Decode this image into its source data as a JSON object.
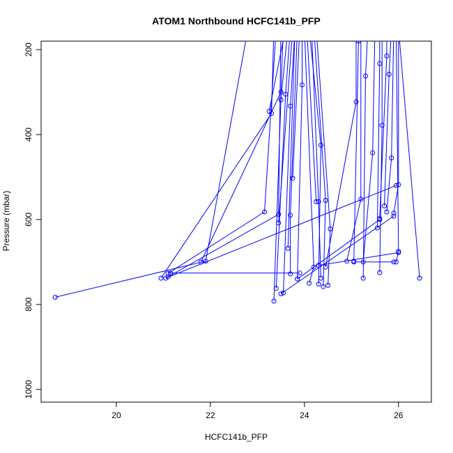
{
  "chart_data": {
    "type": "line",
    "title": "ATOM1 Northbound HCFC141b_PFP",
    "xlabel": "HCFC141b_PFP",
    "ylabel": "Pressure (mbar)",
    "xlim": [
      18.4,
      26.7
    ],
    "ylim": [
      1030,
      180
    ],
    "y_reversed": true,
    "x_ticks": [
      20,
      22,
      24,
      26
    ],
    "y_ticks": [
      200,
      400,
      600,
      800,
      1000
    ],
    "grid": false,
    "legend": "none",
    "color": "#0000ff",
    "series": [
      {
        "points": [
          [
            18.7,
            783
          ],
          [
            21.9,
            698
          ],
          [
            22.8,
            150
          ]
        ]
      },
      {
        "points": [
          [
            20.95,
            738
          ],
          [
            23.3,
            350
          ],
          [
            23.35,
            150
          ]
        ]
      },
      {
        "points": [
          [
            21.1,
            727
          ],
          [
            23.15,
            582
          ],
          [
            23.4,
            150
          ]
        ]
      },
      {
        "points": [
          [
            21.1,
            735
          ],
          [
            23.45,
            588
          ],
          [
            23.5,
            150
          ]
        ]
      },
      {
        "points": [
          [
            21.8,
            700
          ],
          [
            23.5,
            300
          ],
          [
            23.55,
            150
          ]
        ]
      },
      {
        "points": [
          [
            23.25,
            345
          ],
          [
            23.6,
            150
          ]
        ]
      },
      {
        "points": [
          [
            23.35,
            792
          ],
          [
            23.5,
            318
          ],
          [
            23.65,
            150
          ]
        ]
      },
      {
        "points": [
          [
            23.4,
            762
          ],
          [
            23.6,
            305
          ],
          [
            23.7,
            150
          ]
        ]
      },
      {
        "points": [
          [
            23.45,
            608
          ],
          [
            23.75,
            150
          ]
        ]
      },
      {
        "points": [
          [
            23.55,
            773
          ],
          [
            23.7,
            333
          ],
          [
            23.8,
            150
          ]
        ]
      },
      {
        "points": [
          [
            23.65,
            668
          ],
          [
            23.8,
            150
          ]
        ]
      },
      {
        "points": [
          [
            23.7,
            728
          ],
          [
            23.7,
            590
          ],
          [
            23.85,
            150
          ]
        ]
      },
      {
        "points": [
          [
            23.75,
            503
          ],
          [
            23.9,
            150
          ]
        ]
      },
      {
        "points": [
          [
            23.85,
            740
          ],
          [
            23.95,
            283
          ],
          [
            23.95,
            150
          ]
        ]
      },
      {
        "points": [
          [
            24.1,
            750
          ],
          [
            24.2,
            712
          ],
          [
            24.0,
            150
          ]
        ]
      },
      {
        "points": [
          [
            24.25,
            558
          ],
          [
            24.05,
            150
          ]
        ]
      },
      {
        "points": [
          [
            24.3,
            752
          ],
          [
            24.35,
            425
          ],
          [
            24.1,
            150
          ]
        ]
      },
      {
        "points": [
          [
            24.35,
            738
          ],
          [
            24.3,
            558
          ],
          [
            24.15,
            150
          ]
        ]
      },
      {
        "points": [
          [
            24.4,
            758
          ],
          [
            24.45,
            555
          ],
          [
            24.2,
            150
          ]
        ]
      },
      {
        "points": [
          [
            24.5,
            755
          ],
          [
            24.55,
            622
          ],
          [
            24.25,
            150
          ]
        ]
      },
      {
        "points": [
          [
            24.45,
            712
          ],
          [
            25.1,
            323
          ],
          [
            25.1,
            150
          ]
        ]
      },
      {
        "points": [
          [
            24.9,
            698
          ],
          [
            25.2,
            552
          ],
          [
            25.2,
            150
          ]
        ]
      },
      {
        "points": [
          [
            25.05,
            698
          ],
          [
            25.15,
            180
          ],
          [
            25.25,
            150
          ]
        ]
      },
      {
        "points": [
          [
            25.25,
            738
          ],
          [
            25.3,
            262
          ],
          [
            25.35,
            150
          ]
        ]
      },
      {
        "points": [
          [
            25.25,
            700
          ],
          [
            25.45,
            443
          ],
          [
            25.5,
            150
          ]
        ]
      },
      {
        "points": [
          [
            25.55,
            620
          ],
          [
            25.6,
            233
          ],
          [
            25.6,
            150
          ]
        ]
      },
      {
        "points": [
          [
            25.6,
            725
          ],
          [
            25.65,
            378
          ],
          [
            25.65,
            150
          ]
        ]
      },
      {
        "points": [
          [
            25.6,
            598
          ],
          [
            25.75,
            215
          ],
          [
            25.75,
            150
          ]
        ]
      },
      {
        "points": [
          [
            25.7,
            568
          ],
          [
            25.8,
            258
          ],
          [
            25.85,
            150
          ]
        ]
      },
      {
        "points": [
          [
            25.75,
            582
          ],
          [
            25.85,
            455
          ],
          [
            25.9,
            150
          ]
        ]
      },
      {
        "points": [
          [
            25.9,
            585
          ],
          [
            26.0,
            518
          ],
          [
            26.0,
            150
          ]
        ]
      },
      {
        "points": [
          [
            25.95,
            700
          ],
          [
            26.0,
            675
          ],
          [
            25.95,
            150
          ]
        ]
      },
      {
        "points": [
          [
            26.45,
            738
          ],
          [
            26.0,
            150
          ]
        ]
      },
      {
        "points": [
          [
            21.15,
            726
          ],
          [
            23.9,
            726
          ]
        ]
      },
      {
        "points": [
          [
            25.05,
            700
          ],
          [
            25.9,
            700
          ]
        ]
      },
      {
        "points": [
          [
            23.5,
            775
          ],
          [
            25.9,
            592
          ]
        ]
      },
      {
        "points": [
          [
            23.85,
            740
          ],
          [
            25.6,
            600
          ]
        ]
      },
      {
        "points": [
          [
            21.05,
            738
          ],
          [
            25.95,
            520
          ]
        ]
      },
      {
        "points": [
          [
            24.3,
            708
          ],
          [
            26.0,
            678
          ]
        ]
      }
    ]
  }
}
